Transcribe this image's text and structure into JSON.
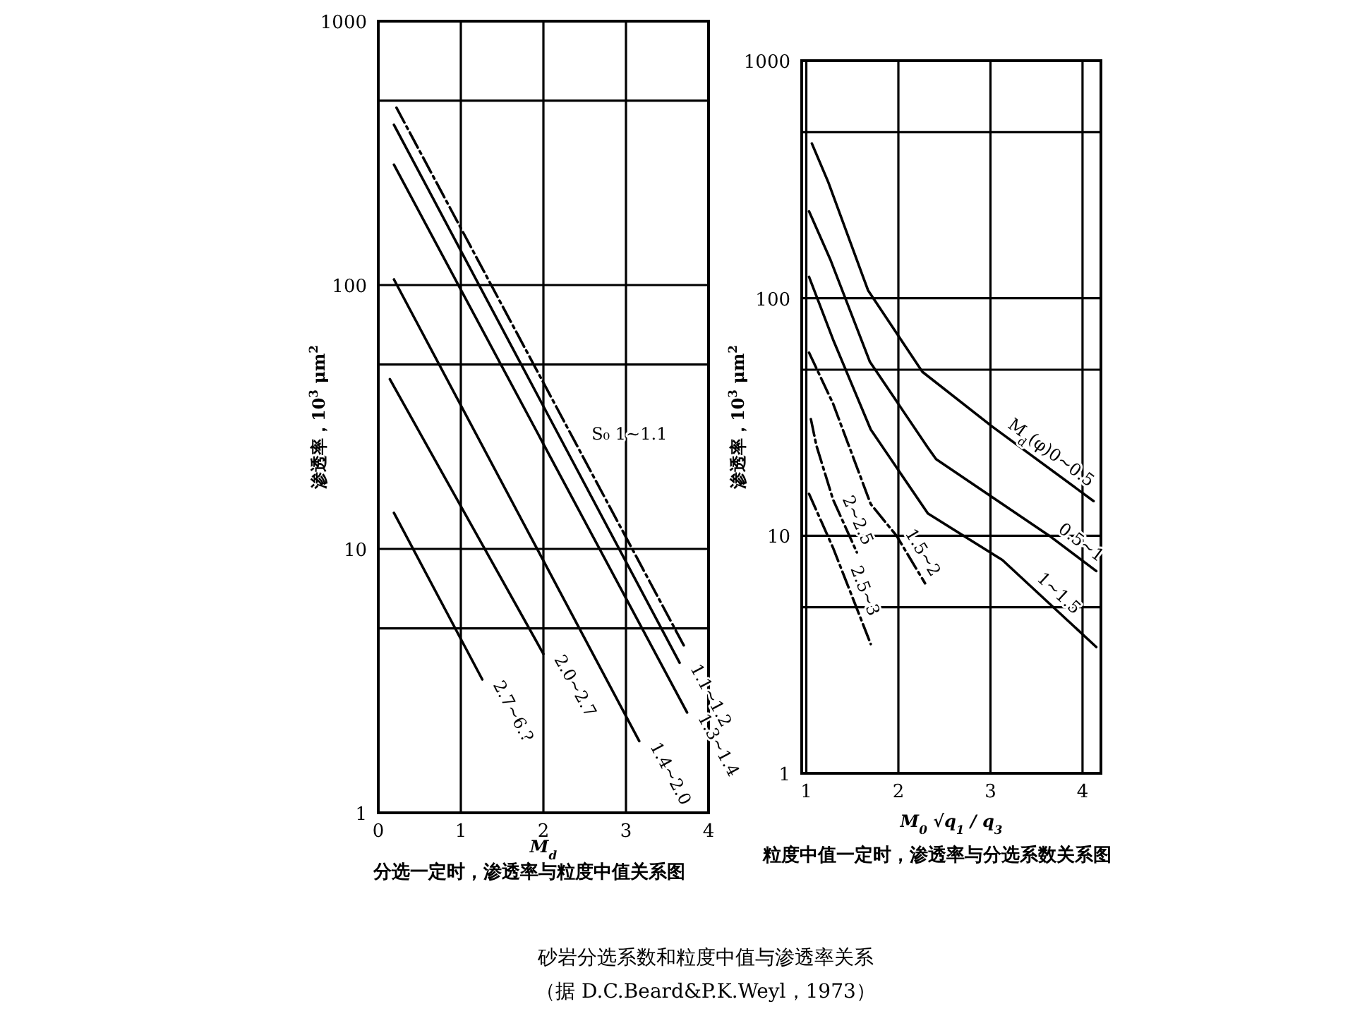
{
  "chart_data": [
    {
      "type": "line",
      "title": "分选一定时，渗透率与粒度中值关系图",
      "xlabel": "M$_{d}$",
      "ylabel": "渗透率，10$^{3}$ μm$^{2}$",
      "log": "y",
      "grid": true,
      "xlim": [
        0,
        4
      ],
      "ylim": [
        1,
        1000
      ],
      "xticks": [
        0,
        1,
        2,
        3,
        4
      ],
      "yticks": [
        1,
        {
          "value": 5,
          "label": null
        },
        10,
        {
          "value": 50,
          "label": null
        },
        100,
        {
          "value": 500,
          "label": null
        },
        1000
      ],
      "series": [
        {
          "name": "S₀ 1~1.1",
          "color": "#000000",
          "line_style": "dashed",
          "x": [
            0.22,
            3.7
          ],
          "values": [
            470,
            4.3
          ]
        },
        {
          "name": "1.1~1.2",
          "color": "#000000",
          "x": [
            0.19,
            3.65
          ],
          "values": [
            405,
            3.7
          ]
        },
        {
          "name": "1.3~1.4",
          "color": "#000000",
          "x": [
            0.19,
            3.74
          ],
          "values": [
            286,
            2.4
          ]
        },
        {
          "name": "1.4~2.0",
          "color": "#000000",
          "x": [
            0.19,
            3.16
          ],
          "values": [
            105,
            1.87
          ]
        },
        {
          "name": "2.0~2.7",
          "color": "#000000",
          "x": [
            0.14,
            2.0
          ],
          "values": [
            44,
            4.0
          ]
        },
        {
          "name": "2.7~6.?",
          "color": "#000000",
          "x": [
            0.19,
            1.26
          ],
          "values": [
            13.7,
            3.2
          ]
        }
      ]
    },
    {
      "type": "line",
      "title": "粒度中值一定时，渗透率与分选系数关系图",
      "xlabel": "M$_{0}$ √q$_{1}$ / q$_{3}$",
      "ylabel": "渗透率，10$^{3}$ μm$^{2}$",
      "log": "y",
      "grid": true,
      "xlim": [
        0.95,
        4.2
      ],
      "ylim": [
        1,
        1000
      ],
      "xticks": [
        1,
        2,
        3,
        4
      ],
      "yticks": [
        1,
        {
          "value": 5,
          "label": null
        },
        10,
        {
          "value": 50,
          "label": null
        },
        100,
        {
          "value": 500,
          "label": null
        },
        1000
      ],
      "annotations": [
        "砂岩分选系数和粒度中值与渗透率关系",
        "（据 D.C.Beard&P.K.Weyl，1973）"
      ],
      "series": [
        {
          "name": "M$_{d}$(φ)0~0.5",
          "color": "#000000",
          "x": [
            1.06,
            1.24,
            1.62,
            1.67,
            2.26,
            3.02,
            4.12
          ],
          "values": [
            448,
            307,
            122,
            108,
            49,
            28.8,
            14
          ]
        },
        {
          "name": "0.5~1",
          "color": "#000000",
          "x": [
            1.03,
            1.26,
            1.69,
            2.32,
            2.41,
            3.64,
            4.15
          ],
          "values": [
            232,
            146,
            54,
            23.5,
            21,
            10,
            7.1
          ]
        },
        {
          "name": "1~1.5",
          "color": "#000000",
          "x": [
            1.03,
            1.29,
            1.7,
            2.32,
            3.13,
            4.15
          ],
          "values": [
            123,
            67,
            28,
            12.4,
            7.9,
            3.4
          ]
        },
        {
          "name": "1.5~2",
          "color": "#000000",
          "line_style": "dashed",
          "x": [
            1.03,
            1.29,
            1.7,
            1.98,
            2.29
          ],
          "values": [
            59,
            36,
            13.6,
            10,
            6.3
          ]
        },
        {
          "name": "2~2.5",
          "color": "#000000",
          "line_style": "dashed",
          "x": [
            1.05,
            1.11,
            1.29,
            1.55
          ],
          "values": [
            31,
            24,
            14.2,
            8.5
          ]
        },
        {
          "name": "2.5~3",
          "color": "#000000",
          "line_style": "dashed",
          "x": [
            1.03,
            1.29,
            1.7
          ],
          "values": [
            15,
            8.9,
            3.5
          ]
        }
      ]
    }
  ]
}
